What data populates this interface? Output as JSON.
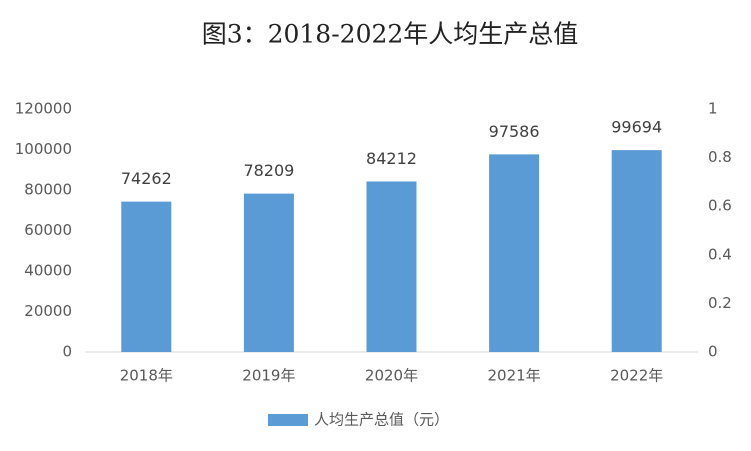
{
  "chart_data": {
    "type": "bar",
    "title": "图3：2018-2022年人均生产总值",
    "categories": [
      "2018年",
      "2019年",
      "2020年",
      "2021年",
      "2022年"
    ],
    "series": [
      {
        "name": "人均生产总值（元）",
        "color": "#5b9bd5",
        "values": [
          74262,
          78209,
          84212,
          97586,
          99694
        ]
      }
    ],
    "ylim": [
      0,
      120000
    ],
    "yticks": [
      0,
      20000,
      40000,
      60000,
      80000,
      100000,
      120000
    ],
    "y2lim": [
      0,
      1
    ],
    "y2ticks": [
      0,
      0.2,
      0.4,
      0.6,
      0.8,
      1
    ],
    "grid": false,
    "legend": "bottom"
  }
}
